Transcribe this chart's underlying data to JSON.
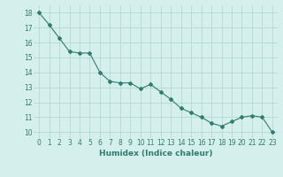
{
  "x": [
    0,
    1,
    2,
    3,
    4,
    5,
    6,
    7,
    8,
    9,
    10,
    11,
    12,
    13,
    14,
    15,
    16,
    17,
    18,
    19,
    20,
    21,
    22,
    23
  ],
  "y": [
    18.0,
    17.2,
    16.3,
    15.4,
    15.3,
    15.3,
    14.0,
    13.4,
    13.3,
    13.3,
    12.9,
    13.2,
    12.7,
    12.2,
    11.6,
    11.3,
    11.0,
    10.6,
    10.4,
    10.7,
    11.0,
    11.1,
    11.0,
    10.0
  ],
  "line_color": "#2e7d6e",
  "marker": "D",
  "marker_size": 2.0,
  "bg_color": "#d5efec",
  "grid_color": "#aed4cf",
  "xlabel": "Humidex (Indice chaleur)",
  "ylabel_ticks": [
    10,
    11,
    12,
    13,
    14,
    15,
    16,
    17,
    18
  ],
  "xlabel_ticks": [
    0,
    1,
    2,
    3,
    4,
    5,
    6,
    7,
    8,
    9,
    10,
    11,
    12,
    13,
    14,
    15,
    16,
    17,
    18,
    19,
    20,
    21,
    22,
    23
  ],
  "ylim": [
    9.6,
    18.5
  ],
  "xlim": [
    -0.5,
    23.5
  ],
  "tick_color": "#2e7d6e",
  "label_fontsize": 6.5,
  "tick_fontsize": 5.5,
  "linewidth": 0.8
}
